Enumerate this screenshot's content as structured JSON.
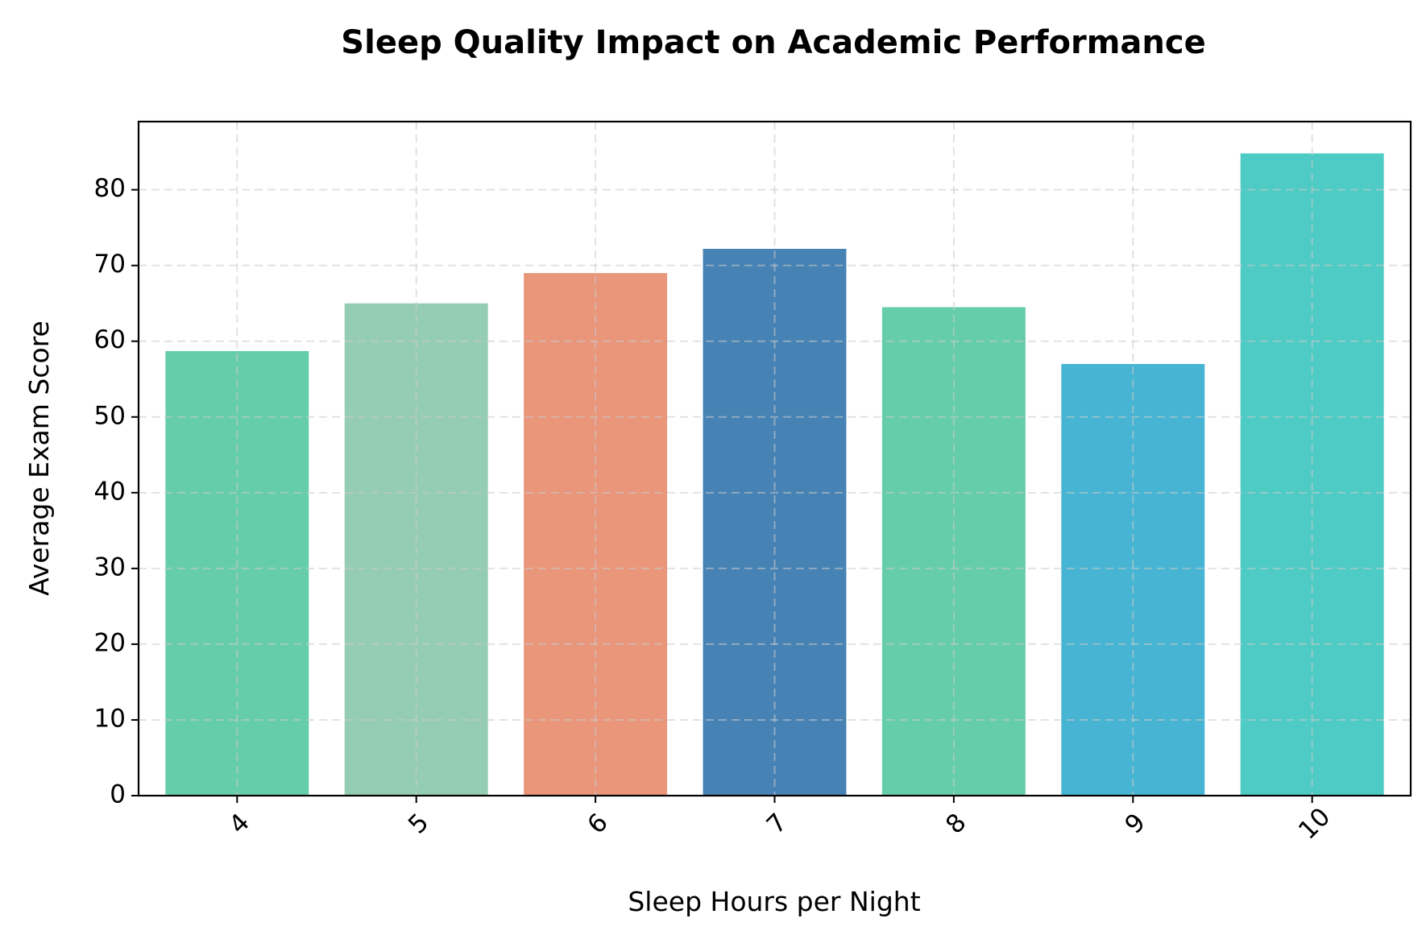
{
  "chart_data": {
    "type": "bar",
    "title": "Sleep Quality Impact on Academic Performance",
    "xlabel": "Sleep Hours per Night",
    "ylabel": "Average Exam Score",
    "categories": [
      "4",
      "5",
      "6",
      "7",
      "8",
      "9",
      "10"
    ],
    "values": [
      58.7,
      65.0,
      69.0,
      72.2,
      64.5,
      57.0,
      84.8
    ],
    "bar_colors": [
      "#66CDAA",
      "#95CDB2",
      "#E9967A",
      "#4682B4",
      "#66CDAA",
      "#46B4D2",
      "#4ECBC4"
    ],
    "ylim": [
      0,
      89
    ],
    "yticks": [
      0,
      10,
      20,
      30,
      40,
      50,
      60,
      70,
      80
    ],
    "grid": true,
    "xtick_rotation": -45
  }
}
